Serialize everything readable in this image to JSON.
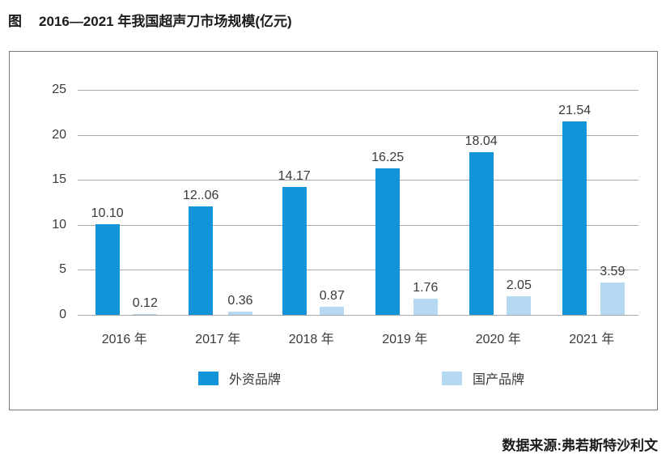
{
  "header": {
    "prefix": "图",
    "title": "2016—2021 年我国超声刀市场规模(亿元)"
  },
  "chart_data": {
    "type": "bar",
    "title": "2016—2021 年我国超声刀市场规模(亿元)",
    "categories": [
      "2016 年",
      "2017 年",
      "2018 年",
      "2019 年",
      "2020 年",
      "2021 年"
    ],
    "series": [
      {
        "name": "外资品牌",
        "color": "#1195d8",
        "values": [
          10.1,
          12.06,
          14.17,
          16.25,
          18.04,
          21.54
        ],
        "labels": [
          "10.10",
          "12..06",
          "14.17",
          "16.25",
          "18.04",
          "21.54"
        ]
      },
      {
        "name": "国产品牌",
        "color": "#b5d9f0",
        "values": [
          0.12,
          0.36,
          0.87,
          1.76,
          2.05,
          3.59
        ],
        "labels": [
          "0.12",
          "0.36",
          "0.87",
          "1.76",
          "2.05",
          "3.59"
        ]
      }
    ],
    "ylim": [
      0,
      25
    ],
    "yticks": [
      0,
      5,
      10,
      15,
      20,
      25
    ],
    "grid": true,
    "legend_position": "bottom-inside",
    "source": "数据来源:弗若斯特沙利文"
  }
}
